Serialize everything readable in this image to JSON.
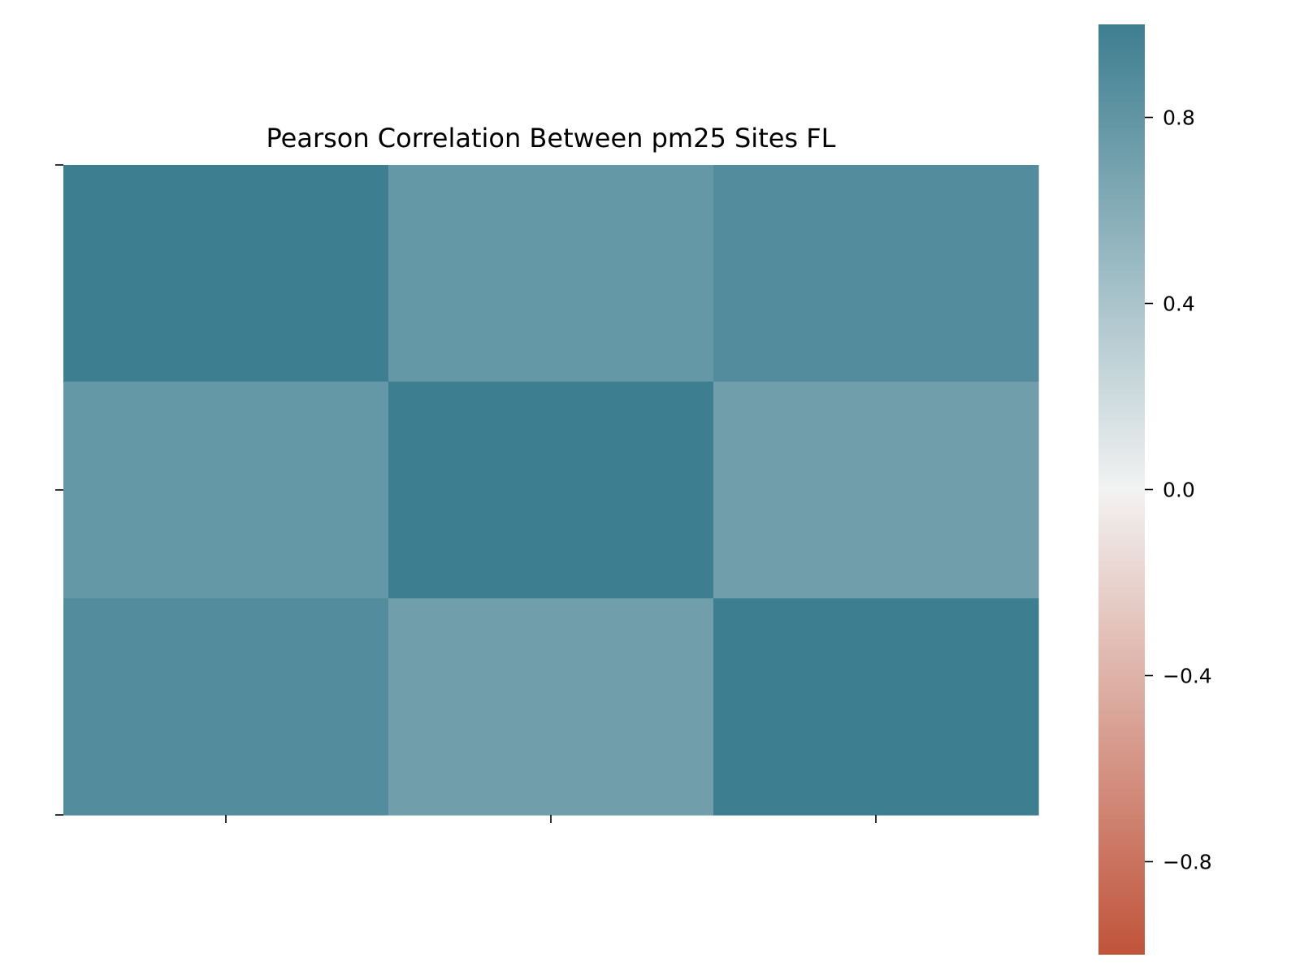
{
  "chart_data": {
    "type": "heatmap",
    "title": "Pearson Correlation Between pm25 Sites FL",
    "xlabel": "",
    "ylabel": "",
    "x_tick_labels": [
      "",
      "",
      ""
    ],
    "y_tick_labels": [
      "",
      "",
      ""
    ],
    "values": [
      [
        1.0,
        0.78,
        0.88
      ],
      [
        0.78,
        1.0,
        0.72
      ],
      [
        0.88,
        0.72,
        1.0
      ]
    ],
    "colorbar": {
      "range": [
        -1.0,
        1.0
      ],
      "ticks": [
        0.8,
        0.4,
        0.0,
        -0.4,
        -0.8
      ],
      "tick_labels": [
        "0.8",
        "0.4",
        "0.0",
        "−0.4",
        "−0.8"
      ]
    },
    "colors": {
      "negative": "#c0533a",
      "center": "#f2f2f2",
      "positive": "#3d7e90"
    },
    "grid": false,
    "legend": "none"
  }
}
